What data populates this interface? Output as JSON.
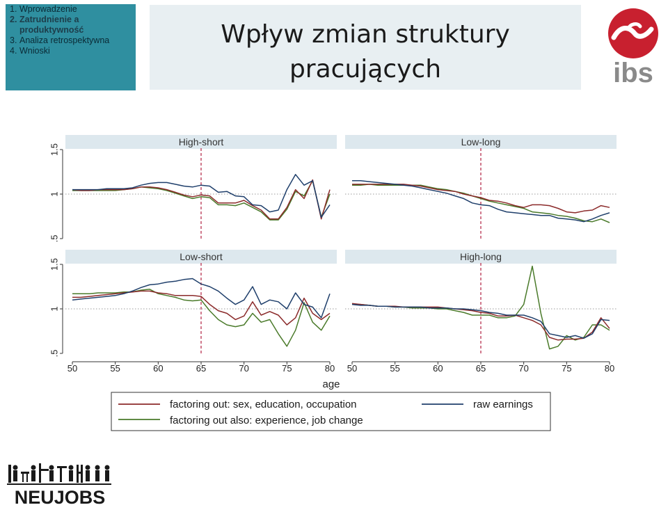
{
  "nav": {
    "items": [
      {
        "num": "1.",
        "label": "Wprowadzenie",
        "active": false
      },
      {
        "num": "2.",
        "label": "Zatrudnienie a produktywność",
        "active": true
      },
      {
        "num": "3.",
        "label": "Analiza retrospektywna",
        "active": false
      },
      {
        "num": "4.",
        "label": "Wnioski",
        "active": false
      }
    ]
  },
  "slide": {
    "title_line1": "Wpływ zmian struktury",
    "title_line2": "pracujących"
  },
  "logos": {
    "ibs_icon": "ibs-logo-icon",
    "ibs_brand_color": "#c8202f",
    "ibs_text": "ibs",
    "neujobs_text": "NEUJOBS"
  },
  "chart_data": {
    "type": "line",
    "xlabel": "age",
    "x_ticks": [
      50,
      55,
      60,
      65,
      70,
      75,
      80
    ],
    "y_ticks": [
      ".5",
      "1",
      "1.5"
    ],
    "ylim": [
      0.5,
      1.5
    ],
    "xlim": [
      50,
      80
    ],
    "reference_y": 1,
    "reference_x": 65,
    "legend": [
      {
        "label": "factoring out: sex, education, occupation",
        "color": "#8b2a2a"
      },
      {
        "label": "raw earnings",
        "color": "#1f3f6b"
      },
      {
        "label": "factoring out also: experience, job change",
        "color": "#4a7a2a"
      }
    ],
    "colors": {
      "sex_edu_occ": "#8b2a2a",
      "raw": "#1f3f6b",
      "exp_job": "#4a7a2a",
      "ref_line": "#b02040",
      "strip": "#dde8ee"
    },
    "x": [
      50,
      51,
      52,
      53,
      54,
      55,
      56,
      57,
      58,
      59,
      60,
      61,
      62,
      63,
      64,
      65,
      66,
      67,
      68,
      69,
      70,
      71,
      72,
      73,
      74,
      75,
      76,
      77,
      78,
      79,
      80
    ],
    "panels": [
      {
        "title": "High-short",
        "series": {
          "raw": [
            1.05,
            1.05,
            1.05,
            1.05,
            1.06,
            1.06,
            1.06,
            1.07,
            1.1,
            1.12,
            1.13,
            1.13,
            1.11,
            1.09,
            1.08,
            1.1,
            1.09,
            1.02,
            1.03,
            0.98,
            0.97,
            0.88,
            0.87,
            0.8,
            0.82,
            1.05,
            1.22,
            1.1,
            1.15,
            0.74,
            0.88
          ],
          "sex_edu_occ": [
            1.05,
            1.04,
            1.04,
            1.05,
            1.05,
            1.05,
            1.05,
            1.06,
            1.08,
            1.08,
            1.07,
            1.05,
            1.02,
            0.99,
            0.97,
            0.99,
            0.98,
            0.9,
            0.9,
            0.9,
            0.93,
            0.87,
            0.82,
            0.72,
            0.72,
            0.85,
            1.05,
            0.95,
            1.16,
            0.72,
            1.05
          ],
          "exp_job": [
            1.04,
            1.04,
            1.04,
            1.04,
            1.04,
            1.04,
            1.05,
            1.06,
            1.08,
            1.07,
            1.06,
            1.04,
            1.01,
            0.98,
            0.95,
            0.97,
            0.96,
            0.88,
            0.88,
            0.87,
            0.9,
            0.85,
            0.8,
            0.71,
            0.71,
            0.83,
            1.03,
            0.98,
            1.15,
            0.74,
            1.0
          ]
        }
      },
      {
        "title": "Low-long",
        "series": {
          "raw": [
            1.15,
            1.15,
            1.14,
            1.13,
            1.12,
            1.11,
            1.1,
            1.09,
            1.07,
            1.05,
            1.03,
            1.01,
            0.98,
            0.95,
            0.9,
            0.88,
            0.87,
            0.83,
            0.8,
            0.79,
            0.78,
            0.77,
            0.76,
            0.76,
            0.73,
            0.72,
            0.71,
            0.69,
            0.72,
            0.76,
            0.79
          ],
          "sex_edu_occ": [
            1.11,
            1.11,
            1.11,
            1.11,
            1.11,
            1.11,
            1.11,
            1.1,
            1.09,
            1.07,
            1.05,
            1.04,
            1.03,
            1.0,
            0.98,
            0.96,
            0.93,
            0.92,
            0.9,
            0.87,
            0.85,
            0.88,
            0.88,
            0.87,
            0.84,
            0.8,
            0.79,
            0.81,
            0.82,
            0.87,
            0.85
          ],
          "exp_job": [
            1.1,
            1.1,
            1.11,
            1.1,
            1.1,
            1.1,
            1.1,
            1.1,
            1.1,
            1.08,
            1.06,
            1.05,
            1.03,
            1.01,
            0.98,
            0.95,
            0.92,
            0.9,
            0.88,
            0.86,
            0.84,
            0.8,
            0.79,
            0.78,
            0.76,
            0.75,
            0.73,
            0.7,
            0.69,
            0.72,
            0.68
          ]
        }
      },
      {
        "title": "Low-short",
        "series": {
          "raw": [
            1.1,
            1.11,
            1.12,
            1.13,
            1.14,
            1.15,
            1.17,
            1.2,
            1.24,
            1.27,
            1.28,
            1.3,
            1.31,
            1.33,
            1.34,
            1.28,
            1.25,
            1.2,
            1.12,
            1.05,
            1.1,
            1.25,
            1.05,
            1.1,
            1.08,
            1.0,
            1.18,
            1.05,
            1.02,
            0.9,
            1.17
          ],
          "sex_edu_occ": [
            1.13,
            1.13,
            1.14,
            1.15,
            1.16,
            1.17,
            1.18,
            1.19,
            1.2,
            1.2,
            1.18,
            1.17,
            1.15,
            1.15,
            1.15,
            1.14,
            1.05,
            0.98,
            0.95,
            0.88,
            0.92,
            1.08,
            0.93,
            0.97,
            0.93,
            0.82,
            0.9,
            1.12,
            0.95,
            0.88,
            0.95
          ],
          "exp_job": [
            1.17,
            1.17,
            1.17,
            1.18,
            1.18,
            1.18,
            1.19,
            1.19,
            1.21,
            1.22,
            1.17,
            1.15,
            1.13,
            1.1,
            1.09,
            1.1,
            0.98,
            0.88,
            0.82,
            0.8,
            0.82,
            0.95,
            0.85,
            0.88,
            0.72,
            0.58,
            0.76,
            1.07,
            0.85,
            0.76,
            0.92
          ]
        }
      },
      {
        "title": "High-long",
        "series": {
          "raw": [
            1.05,
            1.04,
            1.04,
            1.03,
            1.03,
            1.02,
            1.02,
            1.02,
            1.02,
            1.01,
            1.01,
            1.01,
            1.0,
            1.0,
            0.99,
            0.98,
            0.96,
            0.95,
            0.93,
            0.93,
            0.93,
            0.9,
            0.86,
            0.72,
            0.7,
            0.68,
            0.7,
            0.67,
            0.72,
            0.88,
            0.87
          ],
          "sex_edu_occ": [
            1.06,
            1.05,
            1.04,
            1.03,
            1.03,
            1.03,
            1.02,
            1.02,
            1.02,
            1.02,
            1.02,
            1.01,
            1.0,
            0.99,
            0.98,
            0.96,
            0.95,
            0.92,
            0.92,
            0.93,
            0.9,
            0.87,
            0.82,
            0.68,
            0.65,
            0.66,
            0.66,
            0.67,
            0.74,
            0.9,
            0.78
          ],
          "exp_job": [
            1.05,
            1.05,
            1.04,
            1.03,
            1.03,
            1.02,
            1.02,
            1.01,
            1.01,
            1.01,
            1.0,
            1.0,
            0.98,
            0.96,
            0.93,
            0.93,
            0.93,
            0.9,
            0.9,
            0.92,
            1.05,
            1.48,
            0.95,
            0.55,
            0.58,
            0.7,
            0.65,
            0.68,
            0.82,
            0.82,
            0.76
          ]
        }
      }
    ]
  }
}
